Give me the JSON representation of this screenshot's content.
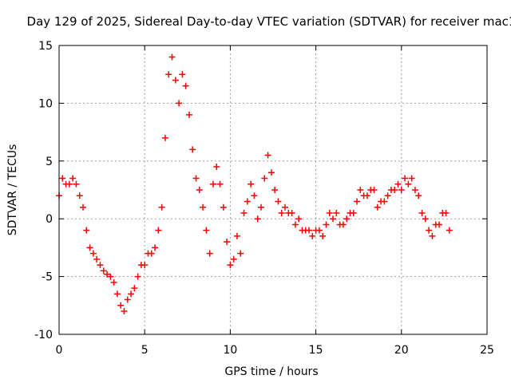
{
  "chart_data": {
    "type": "scatter",
    "title": "Day 129 of 2025, Sidereal Day-to-day VTEC variation (SDTVAR) for receiver mac1",
    "xlabel": "GPS time / hours",
    "ylabel": "SDTVAR / TECUs",
    "xlim": [
      0,
      25
    ],
    "ylim": [
      -10,
      15
    ],
    "xticks": [
      0,
      5,
      10,
      15,
      20,
      25
    ],
    "yticks": [
      -10,
      -5,
      0,
      5,
      10,
      15
    ],
    "grid": true,
    "marker": "+",
    "color": "#ff0000",
    "series": [
      {
        "name": "SDTVAR",
        "x": [
          0.0,
          0.2,
          0.4,
          0.6,
          0.8,
          1.0,
          1.2,
          1.4,
          1.6,
          1.8,
          2.0,
          2.2,
          2.4,
          2.6,
          2.8,
          3.0,
          3.2,
          3.4,
          3.6,
          3.8,
          4.0,
          4.2,
          4.4,
          4.6,
          4.8,
          5.0,
          5.2,
          5.4,
          5.6,
          5.8,
          6.0,
          6.2,
          6.4,
          6.6,
          6.8,
          7.0,
          7.2,
          7.4,
          7.6,
          7.8,
          8.0,
          8.2,
          8.4,
          8.6,
          8.8,
          9.0,
          9.2,
          9.4,
          9.6,
          9.8,
          10.0,
          10.2,
          10.4,
          10.6,
          10.8,
          11.0,
          11.2,
          11.4,
          11.6,
          11.8,
          12.0,
          12.2,
          12.4,
          12.6,
          12.8,
          13.0,
          13.2,
          13.4,
          13.6,
          13.8,
          14.0,
          14.2,
          14.4,
          14.6,
          14.8,
          15.0,
          15.2,
          15.4,
          15.6,
          15.8,
          16.0,
          16.2,
          16.4,
          16.6,
          16.8,
          17.0,
          17.2,
          17.4,
          17.6,
          17.8,
          18.0,
          18.2,
          18.4,
          18.6,
          18.8,
          19.0,
          19.2,
          19.4,
          19.6,
          19.8,
          20.0,
          20.2,
          20.4,
          20.6,
          20.8,
          21.0,
          21.2,
          21.4,
          21.6,
          21.8,
          22.0,
          22.2,
          22.4,
          22.6,
          22.8
        ],
        "y": [
          2.0,
          3.5,
          3.0,
          3.0,
          3.5,
          3.0,
          2.0,
          1.0,
          -1.0,
          -2.5,
          -3.0,
          -3.5,
          -4.0,
          -4.5,
          -4.8,
          -5.0,
          -5.5,
          -6.5,
          -7.5,
          -8.0,
          -7.0,
          -6.5,
          -6.0,
          -5.0,
          -4.0,
          -4.0,
          -3.0,
          -3.0,
          -2.5,
          -1.0,
          1.0,
          7.0,
          12.5,
          14.0,
          12.0,
          10.0,
          12.5,
          11.5,
          9.0,
          6.0,
          3.5,
          2.5,
          1.0,
          -1.0,
          -3.0,
          3.0,
          4.5,
          3.0,
          1.0,
          -2.0,
          -4.0,
          -3.5,
          -1.5,
          -3.0,
          0.5,
          1.5,
          3.0,
          2.0,
          0.0,
          1.0,
          3.5,
          5.5,
          4.0,
          2.5,
          1.5,
          0.5,
          1.0,
          0.5,
          0.5,
          -0.5,
          0.0,
          -1.0,
          -1.0,
          -1.0,
          -1.5,
          -1.0,
          -1.0,
          -1.5,
          -0.5,
          0.5,
          0.0,
          0.5,
          -0.5,
          -0.5,
          0.0,
          0.5,
          0.5,
          1.5,
          2.5,
          2.0,
          2.0,
          2.5,
          2.5,
          1.0,
          1.5,
          1.5,
          2.0,
          2.5,
          2.5,
          3.0,
          2.5,
          3.5,
          3.0,
          3.5,
          2.5,
          2.0,
          0.5,
          0.0,
          -1.0,
          -1.5,
          -0.5,
          -0.5,
          0.5,
          0.5,
          -1.0
        ]
      }
    ]
  }
}
